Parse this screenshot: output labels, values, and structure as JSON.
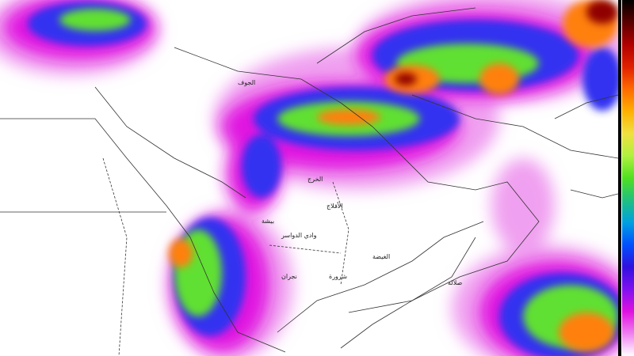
{
  "map": {
    "type": "precipitation forecast map",
    "region": "Arabian Peninsula and Middle East",
    "labels": [
      {
        "text": "الخرج",
        "place": "central-arabia"
      },
      {
        "text": "الأفلاج",
        "place": "central-arabia"
      },
      {
        "text": "وادي الدواسر",
        "place": "south-central-arabia"
      },
      {
        "text": "بيشة",
        "place": "southwest-arabia"
      },
      {
        "text": "نجران",
        "place": "southwest-arabia"
      },
      {
        "text": "شرورة",
        "place": "south-arabia"
      },
      {
        "text": "الغيضة",
        "place": "east-yemen"
      },
      {
        "text": "صلالة",
        "place": "southwest-oman"
      },
      {
        "text": "الجوف",
        "place": "north-arabia"
      }
    ]
  },
  "colorbar": {
    "orientation": "vertical",
    "placement": "right",
    "colors": [
      "#000000",
      "#5a0000",
      "#b00000",
      "#e02000",
      "#ff6a00",
      "#ffb000",
      "#f0e040",
      "#b0f040",
      "#50e020",
      "#20c080",
      "#00a0e0",
      "#0050ff",
      "#3010e0",
      "#8010f0",
      "#e010e0",
      "#f080f0",
      "#ffffff"
    ]
  }
}
